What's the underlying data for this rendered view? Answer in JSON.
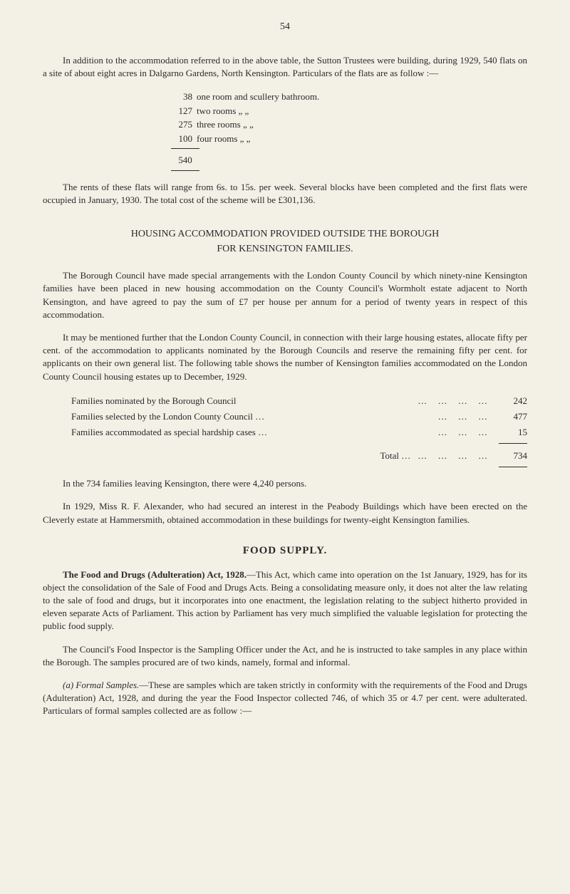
{
  "page_number": "54",
  "intro_paragraph": "In addition to the accommodation referred to in the above table, the Sutton Trustees were building, during 1929, 540 flats on a site of about eight acres in Dalgarno Gardens, North Kensington. Particulars of the flats are as follow :—",
  "rooms": [
    {
      "count": "38",
      "label": "one room and scullery bathroom."
    },
    {
      "count": "127",
      "label": "two rooms        „        „"
    },
    {
      "count": "275",
      "label": "three rooms      „        „"
    },
    {
      "count": "100",
      "label": "four rooms       „        „"
    }
  ],
  "rooms_total": "540",
  "rents_paragraph": "The rents of these flats will range from 6s. to 15s. per week. Several blocks have been completed and the first flats were occupied in January, 1930. The total cost of the scheme will be £301,136.",
  "section_heading_line1": "HOUSING ACCOMMODATION PROVIDED OUTSIDE THE BOROUGH",
  "section_heading_line2": "FOR KENSINGTON FAMILIES.",
  "borough_para1": "The Borough Council have made special arrangements with the London County Council by which ninety-nine Kensington families have been placed in new housing accommodation on the County Council's Wormholt estate adjacent to North Kensington, and have agreed to pay the sum of £7 per house per annum for a period of twenty years in respect of this accommodation.",
  "borough_para2": "It may be mentioned further that the London County Council, in connection with their large housing estates, allocate fifty per cent. of the accommodation to applicants nominated by the Borough Councils and reserve the remaining fifty per cent. for applicants on their own general list. The following table shows the number of Kensington families accommodated on the London County Council housing estates up to December, 1929.",
  "families": [
    {
      "label": "Families nominated by the Borough Council",
      "value": "242"
    },
    {
      "label": "Families selected by the London County Council …",
      "value": "477"
    },
    {
      "label": "Families accommodated as special hardship cases …",
      "value": "15"
    }
  ],
  "families_total_label": "Total …",
  "families_total": "734",
  "families_leaving": "In the 734 families leaving Kensington, there were 4,240 persons.",
  "alexander_para": "In 1929, Miss R. F. Alexander, who had secured an interest in the Peabody Buildings which have been erected on the Cleverly estate at Hammersmith, obtained accommodation in these buildings for twenty-eight Kensington families.",
  "food_supply_heading": "FOOD SUPPLY.",
  "food_drugs_lead": "The Food and Drugs (Adulteration) Act, 1928.",
  "food_drugs_body": "—This Act, which came into operation on the 1st January, 1929, has for its object the consolidation of the Sale of Food and Drugs Acts. Being a consolidating measure only, it does not alter the law relating to the sale of food and drugs, but it incorporates into one enactment, the legislation relating to the subject hitherto provided in eleven separate Acts of Parliament. This action by Parliament has very much simplified the valuable legislation for protecting the public food supply.",
  "inspector_para": "The Council's Food Inspector is the Sampling Officer under the Act, and he is instructed to take samples in any place within the Borough. The samples procured are of two kinds, namely, formal and informal.",
  "formal_samples_lead": "(a) Formal Samples.",
  "formal_samples_body": "—These are samples which are taken strictly in conformity with the requirements of the Food and Drugs (Adulteration) Act, 1928, and during the year the Food Inspector collected 746, of which 35 or 4.7 per cent. were adulterated. Particulars of formal samples collected are as follow :—",
  "colors": {
    "background": "#f3f1e6",
    "text": "#2a2a2a",
    "rule": "#2a2a2a"
  },
  "typography": {
    "body_fontsize": 13,
    "heading_fontsize": 14,
    "subhead_fontsize": 15,
    "font_family": "Georgia, 'Times New Roman', serif"
  }
}
